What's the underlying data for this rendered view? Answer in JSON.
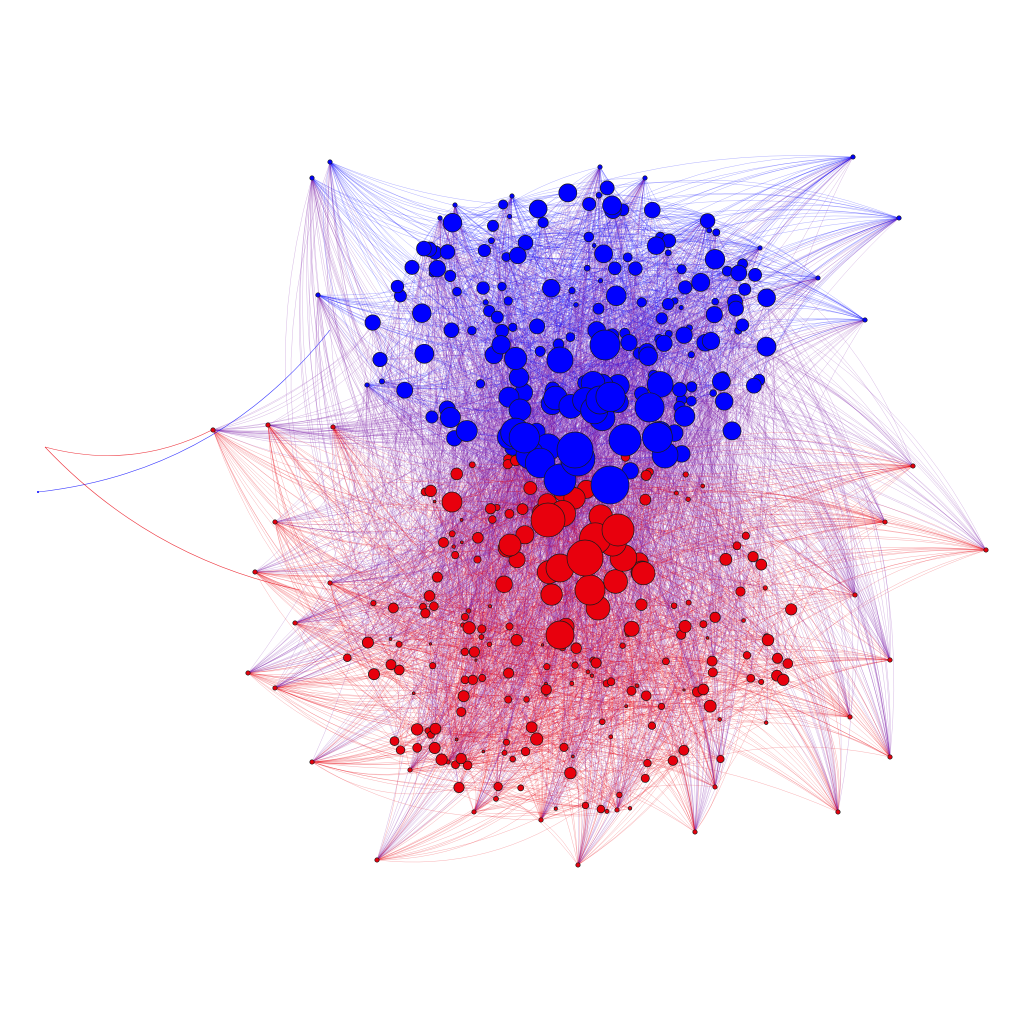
{
  "graph": {
    "type": "network",
    "layout": "force-directed",
    "communities": [
      {
        "id": "blue",
        "color": "#0000ff",
        "position": "upper"
      },
      {
        "id": "red",
        "color": "#e8000d",
        "position": "lower"
      }
    ],
    "edge_colors": {
      "blue_blue": "#0000ff",
      "red_red": "#e8000d",
      "mixed": "#7a1aa6"
    },
    "node_outline": "#1a1a1a",
    "background": "#ffffff",
    "labels_visible": false,
    "legend_visible": false,
    "title": ""
  }
}
